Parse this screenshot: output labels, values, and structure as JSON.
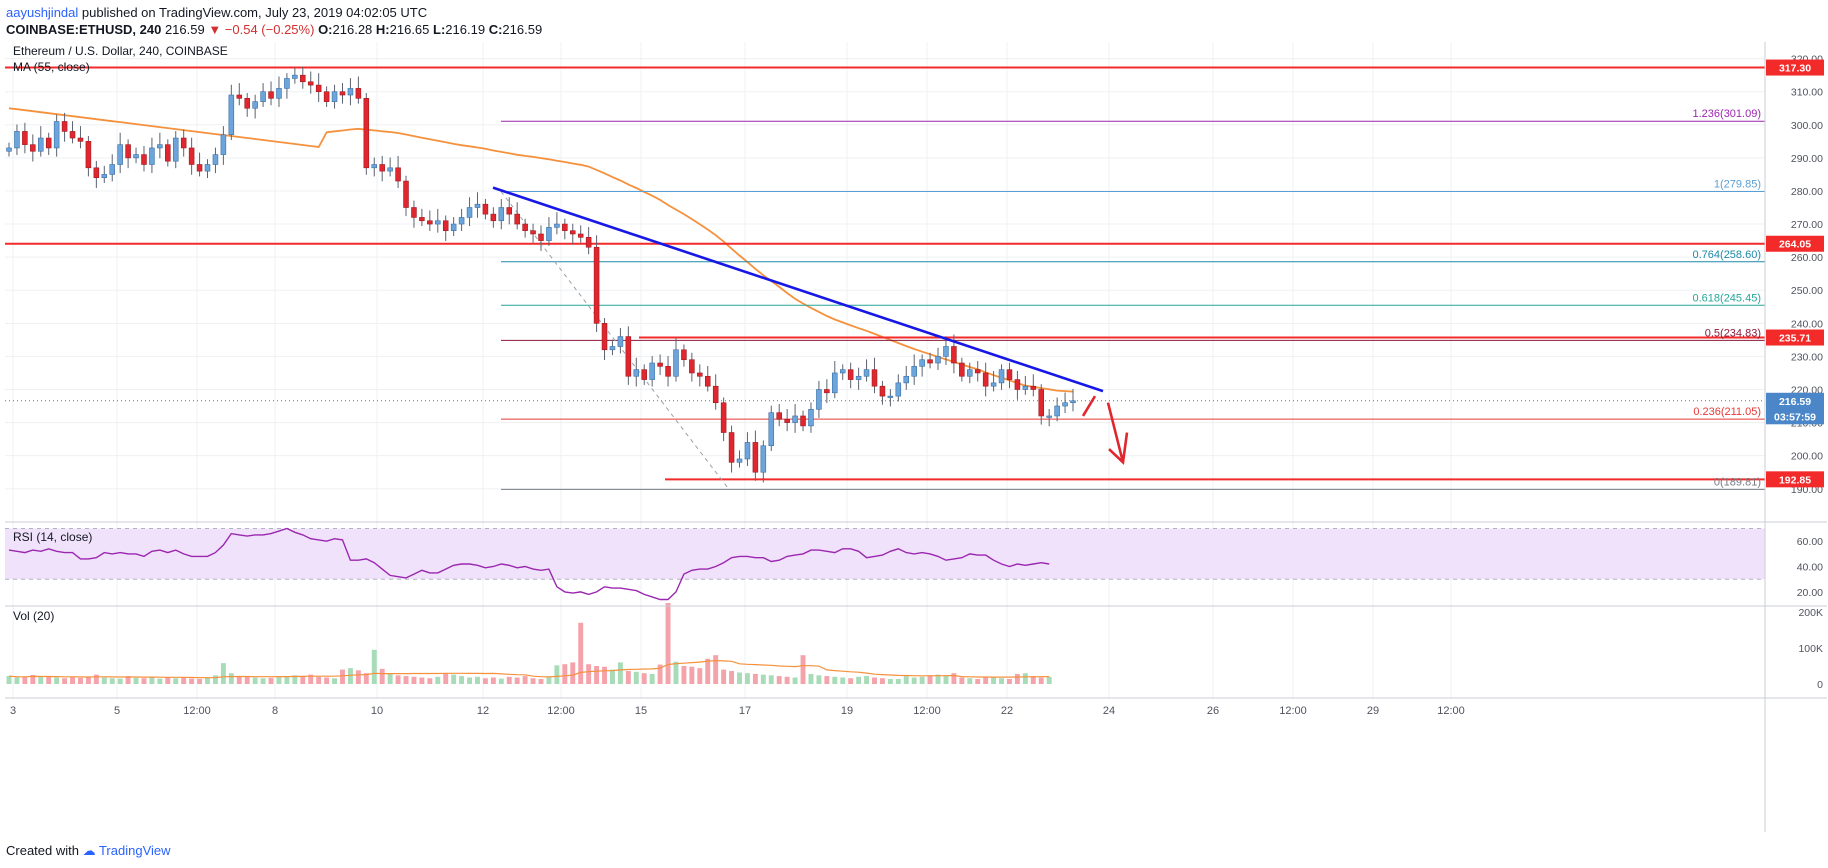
{
  "header": {
    "author": "aayushjindal",
    "published_text": "published on TradingView.com, July 23, 2019 04:02:05 UTC",
    "symbol_line": "COINBASE:ETHUSD, 240",
    "price": "216.59",
    "change": "▼ −0.54 (−0.25%)",
    "o_label": "O:",
    "o": "216.28",
    "h_label": "H:",
    "h": "216.65",
    "l_label": "L:",
    "l": "216.19",
    "c_label": "C:",
    "c": "216.59"
  },
  "chart": {
    "title": "Ethereum / U.S. Dollar, 240, COINBASE",
    "ma_label": "MA (55, close)",
    "rsi_label": "RSI (14, close)",
    "vol_label": "Vol (20)",
    "price_scale": [
      "320.00",
      "310.00",
      "300.00",
      "290.00",
      "280.00",
      "270.00",
      "260.00",
      "250.00",
      "240.00",
      "230.00",
      "220.00",
      "210.00",
      "200.00",
      "190.00"
    ],
    "rsi_scale": [
      "60.00",
      "40.00",
      "20.00"
    ],
    "vol_scale": [
      "200K",
      "100K",
      "0"
    ],
    "time_labels": [
      "3",
      "5",
      "12:00",
      "8",
      "10",
      "12",
      "12:00",
      "15",
      "17",
      "19",
      "12:00",
      "22",
      "24",
      "26",
      "12:00",
      "29",
      "12:00"
    ],
    "tags": {
      "r317": "317.30",
      "r264": "264.05",
      "r235": "235.71",
      "current": "216.59",
      "countdown": "03:57:59",
      "r192": "192.85"
    },
    "fib": {
      "f1236": "1.236(301.09)",
      "f1": "1(279.85)",
      "f0764": "0.764(258.60)",
      "f0618": "0.618(245.45)",
      "f05": "0.5(234.83)",
      "f0236": "0.236(211.05)",
      "f0": "0(189.81)"
    },
    "colors": {
      "up": "#6ba5dc",
      "down": "#e0262e",
      "ma": "#f5913d",
      "trendline": "#1717e6",
      "horizontal": "#f22a2a",
      "rsi_line": "#9b27b0",
      "rsi_band": "#f0e2fb"
    }
  },
  "chart_data": {
    "type": "candlestick",
    "title": "Ethereum / U.S. Dollar, 240, COINBASE",
    "ylim": [
      186,
      322
    ],
    "price_levels": [
      317.3,
      264.05,
      235.71,
      216.59,
      192.85
    ],
    "fib_levels": [
      {
        "ratio": 1.236,
        "price": 301.09
      },
      {
        "ratio": 1,
        "price": 279.85
      },
      {
        "ratio": 0.764,
        "price": 258.6
      },
      {
        "ratio": 0.618,
        "price": 245.45
      },
      {
        "ratio": 0.5,
        "price": 234.83
      },
      {
        "ratio": 0.236,
        "price": 211.05
      },
      {
        "ratio": 0,
        "price": 189.81
      }
    ],
    "close_series": [
      293,
      298,
      294,
      292,
      296,
      293,
      301,
      298,
      296,
      295,
      287,
      284,
      285,
      288,
      294,
      290,
      291,
      288,
      293,
      294,
      289,
      296,
      293,
      288,
      286,
      288,
      291,
      297,
      309,
      308,
      305,
      307,
      310,
      308,
      311,
      314,
      315,
      313,
      312,
      310,
      307,
      310,
      309,
      311,
      308,
      287,
      288,
      286,
      287,
      283,
      275,
      272,
      271,
      270,
      271,
      268,
      270,
      272,
      275,
      276,
      273,
      271,
      275,
      273,
      270,
      268,
      267,
      265,
      269,
      270,
      268,
      267,
      266,
      263,
      240,
      232,
      233,
      236,
      224,
      226,
      223,
      228,
      227,
      224,
      232,
      229,
      225,
      224,
      221,
      216,
      207,
      198,
      199,
      204,
      195,
      203,
      213,
      211,
      210,
      212,
      209,
      214,
      220,
      219,
      225,
      226,
      223,
      224,
      226,
      221,
      218,
      218,
      222,
      224,
      227,
      229,
      228,
      230,
      233,
      228,
      224,
      226,
      225,
      221,
      222,
      226,
      223,
      220,
      221,
      220,
      212,
      212,
      215,
      216,
      216.59
    ],
    "rsi": [
      53,
      52,
      51,
      53,
      52,
      54,
      52,
      51,
      51,
      46,
      46,
      47,
      51,
      50,
      51,
      50,
      50,
      48,
      52,
      53,
      51,
      53,
      50,
      48,
      48,
      48,
      51,
      57,
      66,
      65,
      64,
      65,
      65,
      66,
      68,
      70,
      67,
      65,
      62,
      61,
      60,
      62,
      61,
      45,
      45,
      46,
      43,
      38,
      33,
      32,
      31,
      34,
      37,
      35,
      35,
      38,
      41,
      42,
      42,
      41,
      39,
      40,
      42,
      41,
      39,
      40,
      38,
      37,
      38,
      24,
      20,
      19,
      20,
      18,
      20,
      24,
      23,
      23,
      22,
      21,
      18,
      16,
      14,
      14,
      20,
      34,
      37,
      38,
      38,
      40,
      43,
      47,
      48,
      48,
      47,
      47,
      44,
      45,
      48,
      49,
      50,
      53,
      53,
      52,
      51,
      54,
      54,
      52,
      47,
      48,
      49,
      52,
      54,
      51,
      50,
      51,
      50,
      48,
      45,
      46,
      47,
      50,
      49,
      49,
      45,
      42,
      40,
      42,
      41,
      42,
      43,
      42
    ],
    "volume_k": [
      22,
      18,
      20,
      25,
      19,
      21,
      18,
      16,
      20,
      17,
      19,
      26,
      18,
      16,
      15,
      22,
      17,
      16,
      18,
      15,
      19,
      16,
      18,
      15,
      14,
      17,
      24,
      58,
      30,
      22,
      20,
      18,
      16,
      17,
      19,
      21,
      24,
      22,
      26,
      20,
      18,
      16,
      40,
      44,
      38,
      30,
      95,
      42,
      28,
      24,
      22,
      20,
      18,
      16,
      20,
      30,
      26,
      22,
      18,
      20,
      16,
      18,
      15,
      20,
      18,
      22,
      16,
      14,
      18,
      52,
      55,
      60,
      170,
      55,
      50,
      48,
      40,
      60,
      36,
      34,
      30,
      28,
      54,
      225,
      62,
      50,
      48,
      44,
      70,
      80,
      40,
      36,
      32,
      30,
      28,
      26,
      24,
      22,
      20,
      18,
      80,
      28,
      24,
      22,
      20,
      18,
      16,
      20,
      22,
      18,
      16,
      14,
      14,
      22,
      18,
      20,
      24,
      26,
      22,
      30,
      18,
      16,
      14,
      20,
      18,
      16,
      14,
      28,
      30,
      22,
      18,
      20
    ]
  }
}
